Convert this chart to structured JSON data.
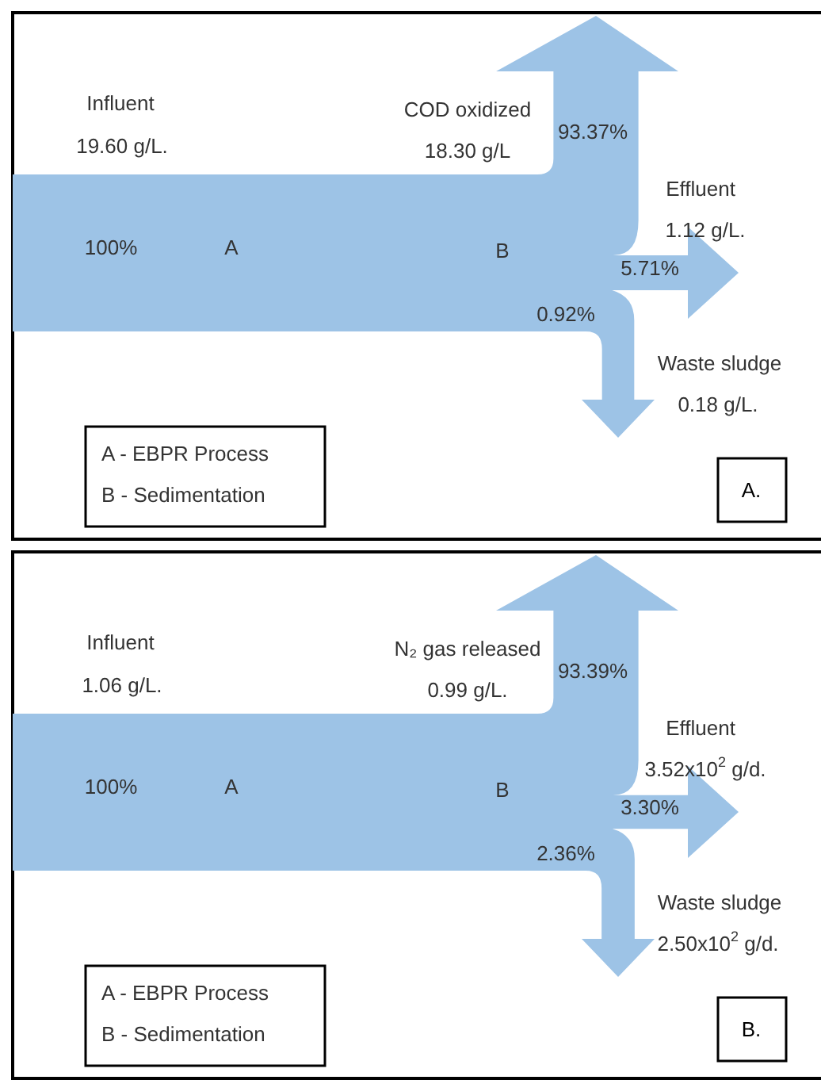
{
  "chart_data": [
    {
      "type": "other",
      "color": "#9dc3e6",
      "categories": [
        "Influent",
        "COD oxidized",
        "Effluent",
        "Waste sludge"
      ],
      "values": [
        100,
        93.37,
        5.71,
        0.92
      ],
      "value_labels": [
        "100%",
        "93.37%",
        "5.71%",
        "0.92%"
      ],
      "annotations": [
        "19.60 g/L.",
        "18.30 g/L",
        "1.12 g/L.",
        "0.18 g/L.",
        "A",
        "B",
        "A - EBPR Process",
        "B - Sedimentation",
        "A."
      ]
    },
    {
      "type": "other",
      "color": "#9dc3e6",
      "categories": [
        "Influent",
        "N₂ gas released",
        "Effluent",
        "Waste sludge"
      ],
      "values": [
        100,
        93.39,
        3.3,
        2.36
      ],
      "value_labels": [
        "100%",
        "93.39%",
        "3.30%",
        "2.36%"
      ],
      "annotations": [
        "1.06 g/L.",
        "0.99 g/L.",
        "3.52x10$^{2}$ g/d.",
        "2.50x10$^{2}$ g/d.",
        "A",
        "B",
        "A - EBPR Process",
        "B - Sedimentation",
        "B."
      ]
    }
  ]
}
